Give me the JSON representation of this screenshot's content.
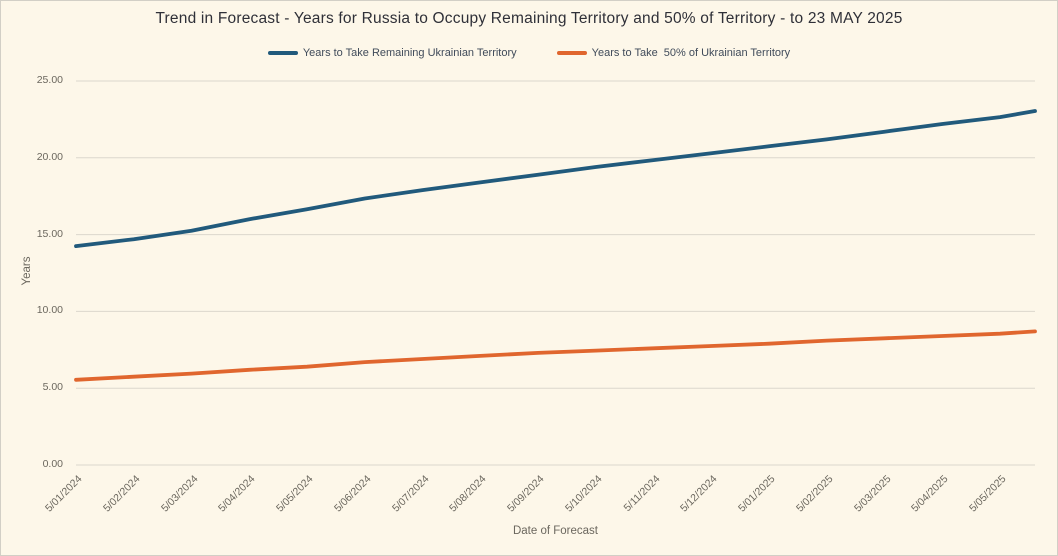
{
  "window": {
    "background_color": "#fdf7e9",
    "border_color": "#d2cfc6"
  },
  "chart_data": {
    "type": "line",
    "title": "Trend in Forecast - Years for Russia to Occupy Remaining Territory and 50% of Territory - to 23 MAY 2025",
    "xlabel": "Date of Forecast",
    "ylabel": "Years",
    "ylim": [
      0,
      25
    ],
    "y_tick_labels": [
      "0.00",
      "5.00",
      "10.00",
      "15.00",
      "20.00",
      "25.00"
    ],
    "x_tick_labels": [
      "5/01/2024",
      "5/02/2024",
      "5/03/2024",
      "5/04/2024",
      "5/05/2024",
      "5/06/2024",
      "5/07/2024",
      "5/08/2024",
      "5/09/2024",
      "5/10/2024",
      "5/11/2024",
      "5/12/2024",
      "5/01/2025",
      "5/02/2025",
      "5/03/2025",
      "5/04/2025",
      "5/05/2025"
    ],
    "series_end_date": "5/23/2025",
    "grid": "horizontal-only",
    "gridline_color": "#dbd7cd",
    "legend_position": "top-center",
    "title_color": "#2f3038",
    "legend_text_color": "#404b5a",
    "tick_label_color": "#6b675e",
    "series": [
      {
        "name": "Years to Take Remaining Ukrainian Territory",
        "color": "#215a7c",
        "values": [
          14.25,
          14.7,
          15.25,
          16.0,
          16.65,
          17.35,
          17.9,
          18.4,
          18.9,
          19.4,
          19.85,
          20.3,
          20.75,
          21.2,
          21.7,
          22.2,
          22.65
        ],
        "end_value": 23.05
      },
      {
        "name": "Years to Take  50% of Ukrainian Territory",
        "color": "#e0662e",
        "values": [
          5.55,
          5.75,
          5.95,
          6.2,
          6.4,
          6.7,
          6.9,
          7.1,
          7.3,
          7.45,
          7.6,
          7.75,
          7.9,
          8.1,
          8.25,
          8.4,
          8.55
        ],
        "end_value": 8.7
      }
    ]
  }
}
